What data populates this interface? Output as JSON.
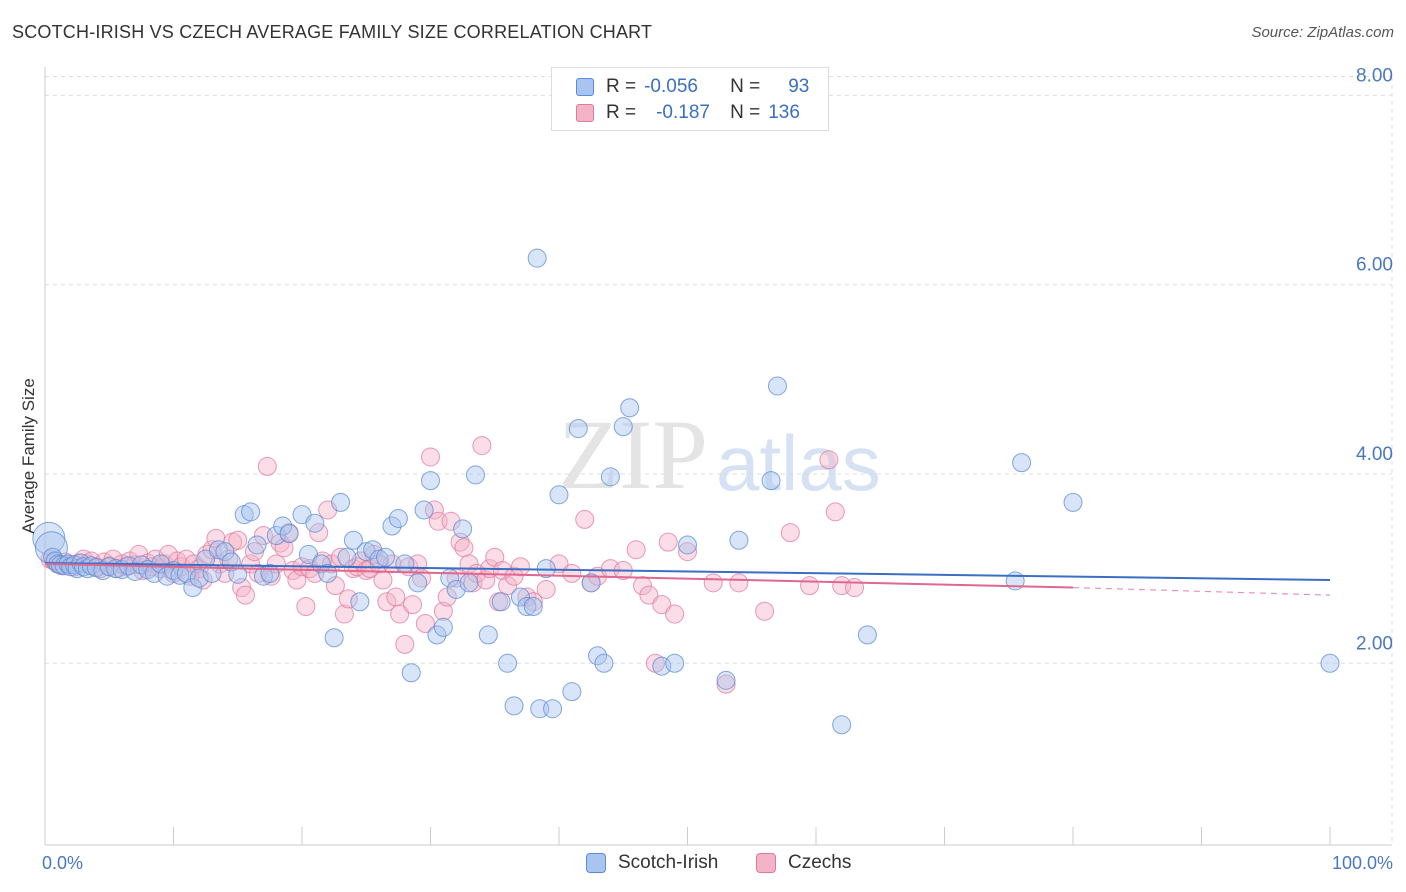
{
  "title": "SCOTCH-IRISH VS CZECH AVERAGE FAMILY SIZE CORRELATION CHART",
  "source": "Source: ZipAtlas.com",
  "watermark": {
    "zip": "ZIP",
    "atlas": "atlas"
  },
  "legend": {
    "series1": {
      "r_label": "R =",
      "r_value": "-0.056",
      "n_label": "N =",
      "n_value": "93"
    },
    "series2": {
      "r_label": "R =",
      "r_value": "-0.187",
      "n_label": "N =",
      "n_value": "136"
    }
  },
  "colors": {
    "blue_fill": "#a9c4ee",
    "blue_stroke": "#5b8ad6",
    "blue_line": "#3a6fc4",
    "pink_fill": "#f5b3c8",
    "pink_stroke": "#e07a9c",
    "pink_line": "#e0678f",
    "grid": "#dddddd",
    "axis_text": "#4a78c0"
  },
  "chart_data": {
    "type": "scatter",
    "title": "SCOTCH-IRISH VS CZECH AVERAGE FAMILY SIZE CORRELATION CHART",
    "xlabel": "",
    "ylabel": "Average Family Size",
    "xlim": [
      0,
      100
    ],
    "ylim": [
      0.08,
      8.3
    ],
    "x_tick_labels": [
      "0.0%",
      "100.0%"
    ],
    "y_ticks": [
      2.0,
      4.0,
      6.0,
      8.0
    ],
    "y_tick_labels": [
      "2.00",
      "4.00",
      "6.00",
      "8.00"
    ],
    "legend_position": "top-center",
    "series": [
      {
        "name": "Scotch-Irish",
        "color": "#5b8ad6",
        "r": -0.056,
        "n": 93,
        "trend": {
          "x0": 0,
          "y0": 3.06,
          "x1": 100,
          "y1": 2.88
        },
        "points": [
          [
            0.3,
            3.32
          ],
          [
            0.5,
            3.22
          ],
          [
            0.6,
            3.12
          ],
          [
            0.8,
            3.08
          ],
          [
            1.0,
            3.05
          ],
          [
            1.2,
            3.04
          ],
          [
            1.5,
            3.03
          ],
          [
            1.8,
            3.05
          ],
          [
            2.0,
            3.02
          ],
          [
            2.3,
            3.04
          ],
          [
            2.5,
            3.0
          ],
          [
            2.8,
            3.06
          ],
          [
            3.0,
            3.02
          ],
          [
            3.3,
            3.0
          ],
          [
            3.6,
            3.03
          ],
          [
            4.0,
            3.01
          ],
          [
            4.5,
            2.98
          ],
          [
            5.0,
            3.02
          ],
          [
            5.5,
            3.0
          ],
          [
            6.0,
            2.99
          ],
          [
            6.5,
            3.03
          ],
          [
            7.0,
            2.97
          ],
          [
            7.5,
            3.04
          ],
          [
            8.0,
            2.99
          ],
          [
            8.5,
            2.95
          ],
          [
            9.0,
            3.05
          ],
          [
            9.5,
            2.92
          ],
          [
            10.0,
            2.98
          ],
          [
            10.5,
            2.93
          ],
          [
            11.0,
            2.95
          ],
          [
            11.5,
            2.8
          ],
          [
            12.0,
            2.9
          ],
          [
            12.5,
            3.1
          ],
          [
            13.0,
            2.95
          ],
          [
            13.5,
            3.2
          ],
          [
            14.0,
            3.18
          ],
          [
            14.5,
            3.07
          ],
          [
            15.0,
            2.94
          ],
          [
            15.5,
            3.57
          ],
          [
            16.0,
            3.6
          ],
          [
            16.5,
            3.25
          ],
          [
            17.0,
            2.92
          ],
          [
            17.5,
            2.95
          ],
          [
            18.0,
            3.35
          ],
          [
            18.5,
            3.45
          ],
          [
            19.0,
            3.37
          ],
          [
            20.0,
            3.57
          ],
          [
            20.5,
            3.15
          ],
          [
            21.0,
            3.48
          ],
          [
            21.5,
            3.05
          ],
          [
            22.0,
            2.95
          ],
          [
            22.5,
            2.27
          ],
          [
            23.0,
            3.7
          ],
          [
            23.5,
            3.12
          ],
          [
            24.0,
            3.3
          ],
          [
            24.5,
            2.65
          ],
          [
            25.0,
            3.18
          ],
          [
            25.5,
            3.2
          ],
          [
            26.0,
            3.1
          ],
          [
            26.5,
            3.12
          ],
          [
            27.0,
            3.45
          ],
          [
            27.5,
            3.53
          ],
          [
            28.0,
            3.05
          ],
          [
            28.5,
            1.9
          ],
          [
            29.0,
            2.85
          ],
          [
            29.5,
            3.62
          ],
          [
            30.0,
            3.93
          ],
          [
            30.5,
            2.3
          ],
          [
            31.0,
            2.38
          ],
          [
            31.5,
            2.9
          ],
          [
            32.0,
            2.78
          ],
          [
            32.5,
            3.42
          ],
          [
            33.0,
            2.85
          ],
          [
            33.5,
            3.99
          ],
          [
            34.5,
            2.3
          ],
          [
            35.5,
            2.65
          ],
          [
            36.0,
            2.0
          ],
          [
            36.5,
            1.55
          ],
          [
            37.0,
            2.7
          ],
          [
            37.5,
            2.6
          ],
          [
            38.0,
            2.6
          ],
          [
            38.5,
            1.52
          ],
          [
            38.3,
            6.28
          ],
          [
            39.0,
            3.0
          ],
          [
            39.5,
            1.52
          ],
          [
            40.0,
            3.78
          ],
          [
            41.0,
            1.7
          ],
          [
            41.5,
            4.48
          ],
          [
            42.5,
            2.85
          ],
          [
            43.0,
            2.08
          ],
          [
            43.5,
            2.0
          ],
          [
            44.0,
            3.97
          ],
          [
            45.0,
            4.5
          ],
          [
            45.5,
            4.7
          ],
          [
            48.0,
            1.97
          ],
          [
            49.0,
            2.0
          ],
          [
            50.0,
            3.25
          ],
          [
            53.0,
            1.82
          ],
          [
            54.0,
            3.3
          ],
          [
            56.5,
            3.93
          ],
          [
            57.0,
            4.93
          ],
          [
            62.0,
            1.35
          ],
          [
            64.0,
            2.3
          ],
          [
            75.5,
            2.87
          ],
          [
            76.0,
            4.12
          ],
          [
            80.0,
            3.7
          ],
          [
            100.0,
            2.0
          ]
        ]
      },
      {
        "name": "Czechs",
        "color": "#e07a9c",
        "r": -0.187,
        "n": 136,
        "trend": {
          "x0": 0,
          "y0": 3.05,
          "x1": 80,
          "y1": 2.8,
          "dashed_to": {
            "x": 100,
            "y": 2.72
          }
        },
        "points": [
          [
            0.4,
            3.1
          ],
          [
            0.7,
            3.08
          ],
          [
            1.0,
            3.05
          ],
          [
            1.3,
            3.03
          ],
          [
            1.6,
            3.07
          ],
          [
            2.0,
            3.04
          ],
          [
            2.3,
            3.02
          ],
          [
            2.6,
            3.06
          ],
          [
            3.0,
            3.1
          ],
          [
            3.3,
            3.05
          ],
          [
            3.6,
            3.08
          ],
          [
            4.0,
            3.02
          ],
          [
            4.3,
            3.0
          ],
          [
            4.6,
            3.07
          ],
          [
            5.0,
            3.03
          ],
          [
            5.3,
            3.1
          ],
          [
            5.6,
            3.0
          ],
          [
            6.0,
            3.05
          ],
          [
            6.3,
            3.02
          ],
          [
            6.6,
            3.08
          ],
          [
            7.0,
            3.04
          ],
          [
            7.3,
            3.15
          ],
          [
            7.6,
            2.98
          ],
          [
            8.0,
            3.06
          ],
          [
            8.3,
            3.02
          ],
          [
            8.6,
            3.1
          ],
          [
            9.0,
            3.0
          ],
          [
            9.3,
            3.05
          ],
          [
            9.6,
            3.15
          ],
          [
            10.0,
            2.95
          ],
          [
            10.3,
            3.08
          ],
          [
            10.6,
            3.02
          ],
          [
            11.0,
            3.1
          ],
          [
            11.3,
            2.92
          ],
          [
            11.6,
            3.05
          ],
          [
            12.0,
            3.0
          ],
          [
            12.3,
            2.88
          ],
          [
            12.6,
            3.15
          ],
          [
            13.0,
            3.2
          ],
          [
            13.3,
            3.32
          ],
          [
            13.6,
            3.05
          ],
          [
            14.0,
            2.95
          ],
          [
            14.3,
            3.1
          ],
          [
            14.6,
            3.28
          ],
          [
            15.0,
            3.3
          ],
          [
            15.3,
            2.8
          ],
          [
            15.6,
            2.72
          ],
          [
            16.0,
            3.05
          ],
          [
            16.3,
            3.18
          ],
          [
            16.6,
            2.95
          ],
          [
            17.0,
            3.35
          ],
          [
            17.3,
            4.08
          ],
          [
            17.6,
            2.92
          ],
          [
            18.0,
            3.05
          ],
          [
            18.3,
            3.27
          ],
          [
            18.6,
            3.22
          ],
          [
            19.0,
            3.38
          ],
          [
            19.3,
            2.98
          ],
          [
            19.6,
            2.88
          ],
          [
            20.0,
            3.02
          ],
          [
            20.3,
            2.6
          ],
          [
            20.6,
            3.0
          ],
          [
            21.0,
            2.95
          ],
          [
            21.3,
            3.38
          ],
          [
            21.6,
            3.08
          ],
          [
            22.0,
            3.62
          ],
          [
            22.3,
            3.05
          ],
          [
            22.6,
            2.82
          ],
          [
            23.0,
            3.12
          ],
          [
            23.3,
            2.52
          ],
          [
            23.6,
            2.68
          ],
          [
            24.0,
            3.0
          ],
          [
            24.3,
            3.02
          ],
          [
            24.6,
            3.08
          ],
          [
            25.0,
            2.98
          ],
          [
            25.3,
            3.0
          ],
          [
            25.6,
            3.15
          ],
          [
            26.0,
            3.05
          ],
          [
            26.3,
            2.88
          ],
          [
            26.6,
            2.65
          ],
          [
            27.0,
            3.05
          ],
          [
            27.3,
            2.7
          ],
          [
            27.6,
            2.52
          ],
          [
            28.0,
            2.2
          ],
          [
            28.3,
            3.02
          ],
          [
            28.6,
            2.62
          ],
          [
            29.0,
            3.05
          ],
          [
            29.3,
            2.9
          ],
          [
            29.6,
            2.42
          ],
          [
            30.0,
            4.18
          ],
          [
            30.3,
            3.62
          ],
          [
            30.6,
            3.5
          ],
          [
            31.0,
            2.55
          ],
          [
            31.3,
            2.7
          ],
          [
            31.6,
            3.5
          ],
          [
            32.0,
            2.9
          ],
          [
            32.3,
            3.28
          ],
          [
            32.6,
            3.22
          ],
          [
            33.0,
            3.05
          ],
          [
            33.3,
            2.85
          ],
          [
            33.6,
            2.95
          ],
          [
            34.0,
            4.3
          ],
          [
            34.3,
            2.88
          ],
          [
            34.6,
            3.0
          ],
          [
            35.0,
            3.12
          ],
          [
            35.3,
            2.65
          ],
          [
            35.6,
            2.98
          ],
          [
            36.0,
            2.82
          ],
          [
            36.5,
            2.92
          ],
          [
            37.0,
            3.02
          ],
          [
            37.5,
            2.7
          ],
          [
            38.0,
            2.65
          ],
          [
            39.0,
            2.78
          ],
          [
            40.0,
            3.05
          ],
          [
            41.0,
            2.95
          ],
          [
            42.0,
            3.52
          ],
          [
            42.5,
            2.85
          ],
          [
            43.0,
            2.92
          ],
          [
            44.0,
            3.0
          ],
          [
            45.0,
            2.98
          ],
          [
            46.0,
            3.2
          ],
          [
            46.5,
            2.82
          ],
          [
            47.0,
            2.72
          ],
          [
            47.5,
            2.0
          ],
          [
            48.0,
            2.62
          ],
          [
            48.5,
            3.28
          ],
          [
            49.0,
            2.52
          ],
          [
            50.0,
            3.18
          ],
          [
            52.0,
            2.85
          ],
          [
            53.0,
            1.78
          ],
          [
            54.0,
            2.85
          ],
          [
            56.0,
            2.55
          ],
          [
            58.0,
            3.38
          ],
          [
            59.5,
            2.82
          ],
          [
            61.0,
            4.15
          ],
          [
            61.5,
            3.6
          ],
          [
            62.0,
            2.82
          ],
          [
            63.0,
            2.8
          ]
        ]
      }
    ]
  },
  "bottom_legend": {
    "series1": "Scotch-Irish",
    "series2": "Czechs"
  }
}
